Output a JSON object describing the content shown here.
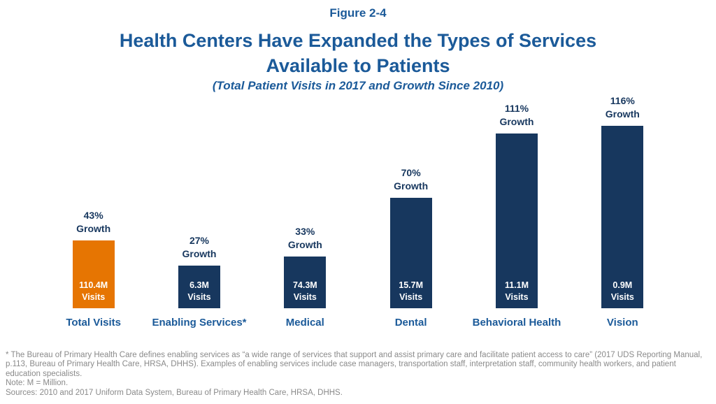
{
  "figure_label": "Figure 2-4",
  "title_line1": "Health Centers Have Expanded the Types of Services",
  "title_line2": "Available to Patients",
  "subtitle": "(Total Patient Visits in 2017 and Growth Since 2010)",
  "chart_data": {
    "type": "bar",
    "title": "Health Centers Have Expanded the Types of Services Available to Patients",
    "subtitle": "(Total Patient Visits in 2017 and Growth Since 2010)",
    "categories": [
      "Total Visits",
      "Enabling Services*",
      "Medical",
      "Dental",
      "Behavioral Health",
      "Vision"
    ],
    "series": [
      {
        "name": "Growth Since 2010 (%)",
        "values": [
          43,
          27,
          33,
          70,
          111,
          116
        ]
      },
      {
        "name": "Total Patient Visits in 2017 (Millions)",
        "values": [
          110.4,
          6.3,
          74.3,
          15.7,
          11.1,
          0.9
        ]
      }
    ],
    "bar_height_encodes": "Growth Since 2010 (%)",
    "legend": "none",
    "grid": "off",
    "axes_visible": false,
    "bars": [
      {
        "category": "Total Visits",
        "growth_value": 43,
        "growth_pct_label": "43%",
        "growth_word": "Growth",
        "visits_value_label": "110.4M",
        "visits_word": "Visits",
        "color": "#e67502"
      },
      {
        "category": "Enabling Services*",
        "growth_value": 27,
        "growth_pct_label": "27%",
        "growth_word": "Growth",
        "visits_value_label": "6.3M",
        "visits_word": "Visits",
        "color": "#17375e"
      },
      {
        "category": "Medical",
        "growth_value": 33,
        "growth_pct_label": "33%",
        "growth_word": "Growth",
        "visits_value_label": "74.3M",
        "visits_word": "Visits",
        "color": "#17375e"
      },
      {
        "category": "Dental",
        "growth_value": 70,
        "growth_pct_label": "70%",
        "growth_word": "Growth",
        "visits_value_label": "15.7M",
        "visits_word": "Visits",
        "color": "#17375e"
      },
      {
        "category": "Behavioral Health",
        "growth_value": 111,
        "growth_pct_label": "111%",
        "growth_word": "Growth",
        "visits_value_label": "11.1M",
        "visits_word": "Visits",
        "color": "#17375e"
      },
      {
        "category": "Vision",
        "growth_value": 116,
        "growth_pct_label": "116%",
        "growth_word": "Growth",
        "visits_value_label": "0.9M",
        "visits_word": "Visits",
        "color": "#17375e"
      }
    ]
  },
  "footnotes": {
    "asterisk_note": "* The Bureau of Primary Health Care defines enabling services as “a wide range of services that support and assist primary care and facilitate patient access to care” (2017 UDS Reporting Manual, p.113, Bureau of Primary Health Care, HRSA, DHHS). Examples of enabling services include case managers, transportation staff, interpretation staff, community health workers, and patient education specialists.",
    "note": "Note: M = Million.",
    "sources": "Sources: 2010 and 2017 Uniform Data System, Bureau of Primary Health Care, HRSA, DHHS."
  },
  "colors": {
    "title_blue": "#1b5a99",
    "label_navy": "#17375e",
    "bar_navy": "#17375e",
    "bar_orange": "#e67502",
    "footnote_gray": "#8a8a8a",
    "visits_text": "#ffffff"
  }
}
